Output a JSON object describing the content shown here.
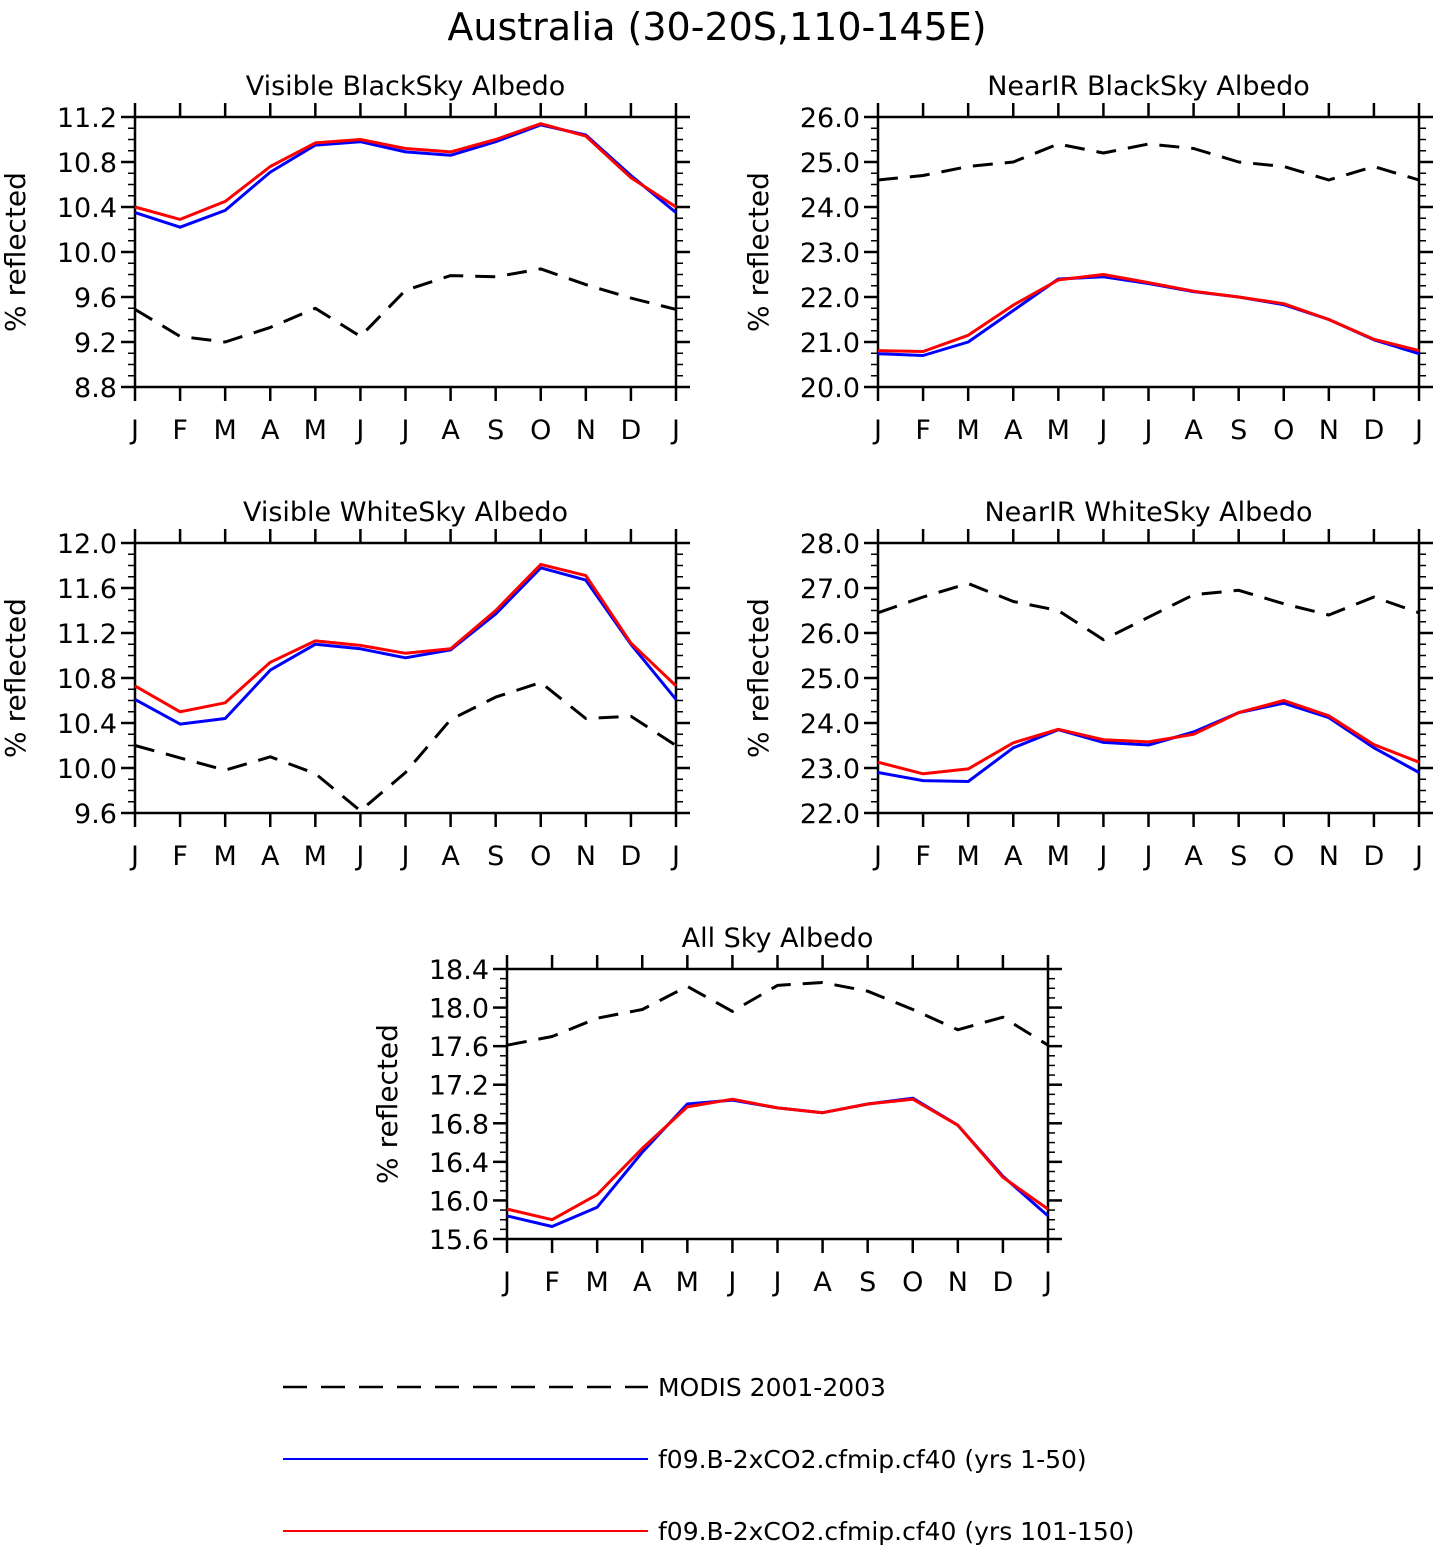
{
  "figure": {
    "title": "Australia (30-20S,110-145E)"
  },
  "months": [
    "J",
    "F",
    "M",
    "A",
    "M",
    "J",
    "J",
    "A",
    "S",
    "O",
    "N",
    "D",
    "J"
  ],
  "colors": {
    "modis": "#000000",
    "run1": "#0000ff",
    "run2": "#ff0000"
  },
  "legend": [
    {
      "key": "modis",
      "label": "MODIS 2001-2003",
      "style": "dashed",
      "color": "#000000"
    },
    {
      "key": "run1",
      "label": "f09.B-2xCO2.cfmip.cf40 (yrs 1-50)",
      "style": "solid",
      "color": "#0000ff"
    },
    {
      "key": "run2",
      "label": "f09.B-2xCO2.cfmip.cf40 (yrs 101-150)",
      "style": "solid",
      "color": "#ff0000"
    }
  ],
  "chart_data": [
    {
      "type": "line",
      "title": "Visible BlackSky Albedo",
      "ylabel": "% reflected",
      "ylim": [
        8.8,
        11.2
      ],
      "yticks": [
        "8.8",
        "9.2",
        "9.6",
        "10.0",
        "10.4",
        "10.8",
        "11.2"
      ],
      "series": [
        {
          "key": "modis",
          "name": "MODIS 2001-2003",
          "values": [
            9.49,
            9.25,
            9.2,
            9.33,
            9.5,
            9.25,
            9.66,
            9.79,
            9.78,
            9.85,
            9.71,
            9.59,
            9.49
          ]
        },
        {
          "key": "run1",
          "name": "f09.B-2xCO2.cfmip.cf40 (yrs 1-50)",
          "values": [
            10.35,
            10.22,
            10.37,
            10.71,
            10.95,
            10.98,
            10.89,
            10.86,
            10.98,
            11.13,
            11.04,
            10.68,
            10.35
          ]
        },
        {
          "key": "run2",
          "name": "f09.B-2xCO2.cfmip.cf40 (yrs 101-150)",
          "values": [
            10.4,
            10.29,
            10.45,
            10.76,
            10.97,
            11.0,
            10.92,
            10.89,
            11.0,
            11.14,
            11.03,
            10.66,
            10.4
          ]
        }
      ]
    },
    {
      "type": "line",
      "title": "NearIR BlackSky Albedo",
      "ylabel": "% reflected",
      "ylim": [
        20.0,
        26.0
      ],
      "yticks": [
        "20.0",
        "21.0",
        "22.0",
        "23.0",
        "24.0",
        "25.0",
        "26.0"
      ],
      "series": [
        {
          "key": "modis",
          "name": "MODIS 2001-2003",
          "values": [
            24.6,
            24.7,
            24.9,
            25.0,
            25.4,
            25.2,
            25.4,
            25.3,
            25.0,
            24.9,
            24.6,
            24.9,
            24.6
          ]
        },
        {
          "key": "run1",
          "name": "f09.B-2xCO2.cfmip.cf40 (yrs 1-50)",
          "values": [
            20.74,
            20.7,
            21.0,
            21.7,
            22.4,
            22.45,
            22.3,
            22.12,
            22.0,
            21.83,
            21.5,
            21.05,
            20.74
          ]
        },
        {
          "key": "run2",
          "name": "f09.B-2xCO2.cfmip.cf40 (yrs 101-150)",
          "values": [
            20.81,
            20.79,
            21.15,
            21.82,
            22.38,
            22.5,
            22.32,
            22.13,
            22.0,
            21.85,
            21.5,
            21.06,
            20.81
          ]
        }
      ]
    },
    {
      "type": "line",
      "title": "Visible WhiteSky Albedo",
      "ylabel": "% reflected",
      "ylim": [
        9.6,
        12.0
      ],
      "yticks": [
        "9.6",
        "10.0",
        "10.4",
        "10.8",
        "11.2",
        "11.6",
        "12.0"
      ],
      "series": [
        {
          "key": "modis",
          "name": "MODIS 2001-2003",
          "values": [
            10.2,
            10.09,
            9.98,
            10.1,
            9.95,
            9.62,
            9.96,
            10.43,
            10.63,
            10.76,
            10.44,
            10.46,
            10.2
          ]
        },
        {
          "key": "run1",
          "name": "f09.B-2xCO2.cfmip.cf40 (yrs 1-50)",
          "values": [
            10.61,
            10.39,
            10.44,
            10.87,
            11.1,
            11.06,
            10.98,
            11.05,
            11.37,
            11.78,
            11.67,
            11.1,
            10.61
          ]
        },
        {
          "key": "run2",
          "name": "f09.B-2xCO2.cfmip.cf40 (yrs 101-150)",
          "values": [
            10.73,
            10.5,
            10.58,
            10.94,
            11.13,
            11.09,
            11.02,
            11.06,
            11.4,
            11.81,
            11.71,
            11.11,
            10.73
          ]
        }
      ]
    },
    {
      "type": "line",
      "title": "NearIR WhiteSky Albedo",
      "ylabel": "% reflected",
      "ylim": [
        22.0,
        28.0
      ],
      "yticks": [
        "22.0",
        "23.0",
        "24.0",
        "25.0",
        "26.0",
        "27.0",
        "28.0"
      ],
      "series": [
        {
          "key": "modis",
          "name": "MODIS 2001-2003",
          "values": [
            26.45,
            26.8,
            27.1,
            26.7,
            26.5,
            25.85,
            26.35,
            26.85,
            26.95,
            26.65,
            26.4,
            26.8,
            26.45
          ]
        },
        {
          "key": "run1",
          "name": "f09.B-2xCO2.cfmip.cf40 (yrs 1-50)",
          "values": [
            22.9,
            22.72,
            22.7,
            23.45,
            23.85,
            23.57,
            23.51,
            23.8,
            24.23,
            24.44,
            24.12,
            23.45,
            22.9
          ]
        },
        {
          "key": "run2",
          "name": "f09.B-2xCO2.cfmip.cf40 (yrs 101-150)",
          "values": [
            23.13,
            22.87,
            22.98,
            23.56,
            23.86,
            23.63,
            23.58,
            23.75,
            24.23,
            24.5,
            24.16,
            23.52,
            23.13
          ]
        }
      ]
    },
    {
      "type": "line",
      "title": "All Sky Albedo",
      "ylabel": "% reflected",
      "ylim": [
        15.6,
        18.4
      ],
      "yticks": [
        "15.6",
        "16.0",
        "16.4",
        "16.8",
        "17.2",
        "17.6",
        "18.0",
        "18.4"
      ],
      "series": [
        {
          "key": "modis",
          "name": "MODIS 2001-2003",
          "values": [
            17.61,
            17.7,
            17.89,
            17.98,
            18.22,
            17.96,
            18.23,
            18.26,
            18.17,
            17.98,
            17.77,
            17.9,
            17.61
          ]
        },
        {
          "key": "run1",
          "name": "f09.B-2xCO2.cfmip.cf40 (yrs 1-50)",
          "values": [
            15.84,
            15.73,
            15.93,
            16.5,
            17.0,
            17.04,
            16.96,
            16.91,
            17.0,
            17.06,
            16.78,
            16.25,
            15.84
          ]
        },
        {
          "key": "run2",
          "name": "f09.B-2xCO2.cfmip.cf40 (yrs 101-150)",
          "values": [
            15.91,
            15.8,
            16.06,
            16.54,
            16.97,
            17.05,
            16.96,
            16.91,
            17.0,
            17.05,
            16.78,
            16.24,
            15.91
          ]
        }
      ]
    }
  ]
}
